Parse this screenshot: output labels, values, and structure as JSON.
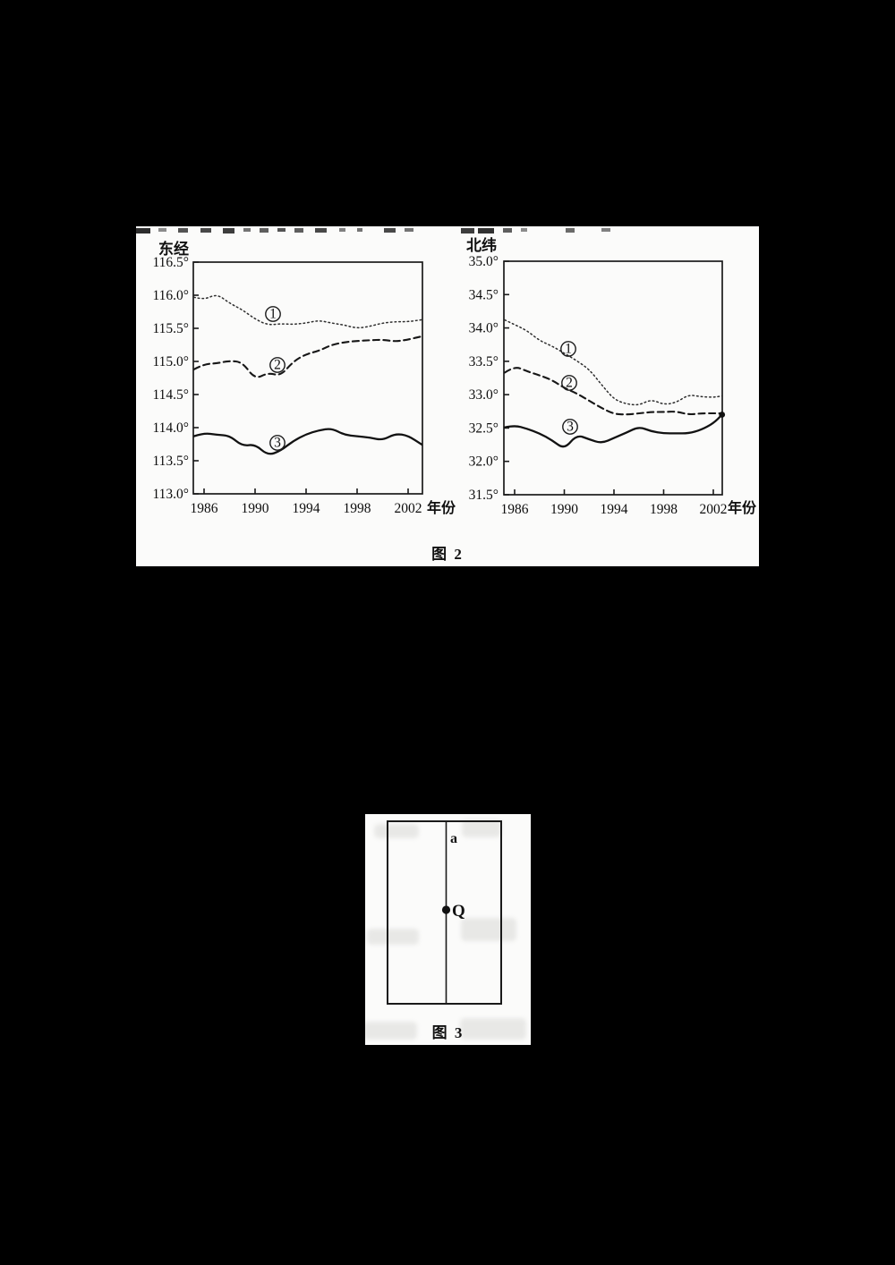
{
  "page": {
    "background": "#000000",
    "paper_color": "#fbfbfa",
    "ink_color": "#1a1a1a"
  },
  "figure2": {
    "caption": "图 2"
  },
  "figure3": {
    "caption": "图 3",
    "line_label": "a",
    "point_label": "Q"
  },
  "chart_data": [
    {
      "type": "line",
      "title": "东经",
      "xlabel": "年份",
      "x_ticks": [
        1986,
        1990,
        1994,
        1998,
        2002
      ],
      "y_tick_labels": [
        "116.5°",
        "116.0°",
        "115.5°",
        "115.0°",
        "114.5°",
        "114.0°",
        "113.5°",
        "113.0°"
      ],
      "ylim": [
        113.0,
        116.5
      ],
      "grid": false,
      "x": [
        1985.2,
        1986,
        1987,
        1988,
        1989,
        1990,
        1991,
        1992,
        1993,
        1994,
        1995,
        1996,
        1997,
        1998,
        1999,
        2000,
        2001,
        2002,
        2003.1
      ],
      "series": [
        {
          "name": "①",
          "style": "dotted",
          "values": [
            115.97,
            115.93,
            116.02,
            115.88,
            115.78,
            115.64,
            115.55,
            115.57,
            115.56,
            115.58,
            115.62,
            115.58,
            115.55,
            115.5,
            115.53,
            115.58,
            115.6,
            115.6,
            115.63
          ]
        },
        {
          "name": "②",
          "style": "dashed",
          "values": [
            114.88,
            114.96,
            114.97,
            115.01,
            114.99,
            114.73,
            114.83,
            114.78,
            115.0,
            115.11,
            115.16,
            115.25,
            115.29,
            115.31,
            115.32,
            115.33,
            115.3,
            115.33,
            115.38
          ]
        },
        {
          "name": "③",
          "style": "solid",
          "values": [
            113.87,
            113.92,
            113.89,
            113.88,
            113.72,
            113.75,
            113.58,
            113.65,
            113.8,
            113.9,
            113.96,
            113.99,
            113.89,
            113.87,
            113.85,
            113.81,
            113.91,
            113.88,
            113.74
          ]
        }
      ]
    },
    {
      "type": "line",
      "title": "北纬",
      "xlabel": "年份",
      "x_ticks": [
        1986,
        1990,
        1994,
        1998,
        2002
      ],
      "y_tick_labels": [
        "35.0°",
        "34.5°",
        "34.0°",
        "33.5°",
        "33.0°",
        "32.5°",
        "32.0°",
        "31.5°"
      ],
      "ylim": [
        31.5,
        35.0
      ],
      "grid": false,
      "x": [
        1985.2,
        1986,
        1987,
        1988,
        1989,
        1990,
        1991,
        1992,
        1993,
        1994,
        1995,
        1996,
        1997,
        1998,
        1999,
        2000,
        2001,
        2002,
        2002.7
      ],
      "series": [
        {
          "name": "①",
          "style": "dotted",
          "values": [
            34.12,
            34.05,
            33.96,
            33.81,
            33.73,
            33.62,
            33.51,
            33.38,
            33.15,
            32.93,
            32.86,
            32.84,
            32.93,
            32.85,
            32.88,
            33.0,
            32.97,
            32.96,
            32.98
          ]
        },
        {
          "name": "②",
          "style": "dashed",
          "values": [
            33.33,
            33.43,
            33.35,
            33.29,
            33.22,
            33.1,
            33.02,
            32.91,
            32.8,
            32.71,
            32.7,
            32.72,
            32.74,
            32.74,
            32.75,
            32.7,
            32.72,
            32.72,
            32.72
          ]
        },
        {
          "name": "③",
          "style": "solid",
          "values": [
            32.51,
            32.54,
            32.49,
            32.42,
            32.32,
            32.18,
            32.4,
            32.33,
            32.27,
            32.35,
            32.43,
            32.52,
            32.45,
            32.42,
            32.42,
            32.42,
            32.47,
            32.57,
            32.7
          ]
        }
      ]
    }
  ]
}
